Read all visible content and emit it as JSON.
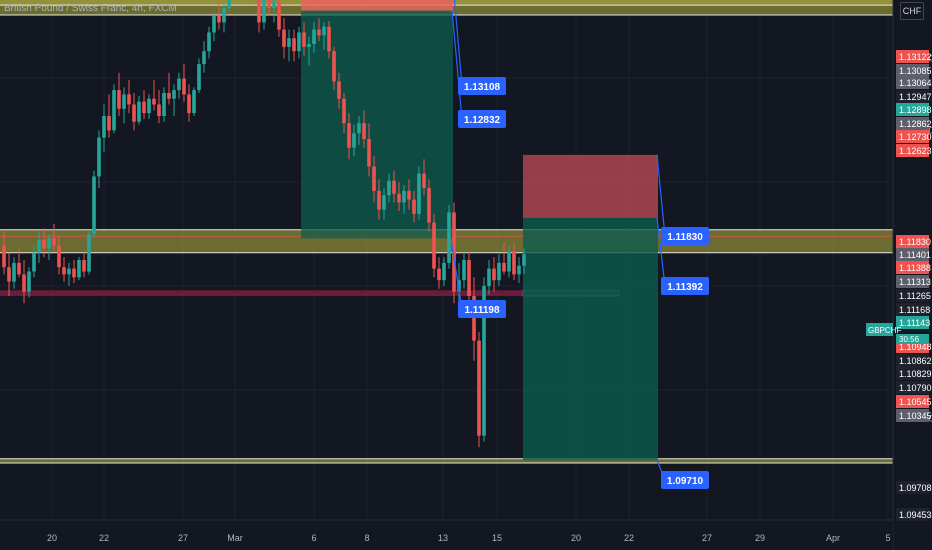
{
  "title": "British Pound / Swiss Franc, 4h, FXCM",
  "currency": "CHF",
  "symbol": "GBPCHF",
  "countdown": "30:56",
  "colors": {
    "background": "#131722",
    "up": "#26a69a",
    "down": "#ef5350",
    "zone": "#b5b040",
    "callout": "#2962ff",
    "target": "#0d5d4d",
    "stop": "#b84a55",
    "red_zone": "#7a1f3d"
  },
  "chart_data": {
    "type": "candlestick",
    "ylim": [
      1.0935,
      1.1285
    ],
    "x_ticks": [
      "20",
      "22",
      "27",
      "Mar",
      "6",
      "8",
      "13",
      "15",
      "20",
      "22",
      "27",
      "29",
      "Apr",
      "5"
    ],
    "y_ticks": [
      "1.12500",
      "1.12000",
      "1.10000"
    ],
    "price_labels": [
      {
        "value": "1.13122",
        "kind": "down"
      },
      {
        "value": "1.13085",
        "kind": "gray"
      },
      {
        "value": "1.13064",
        "kind": "gray"
      },
      {
        "value": "1.12947",
        "kind": "dark"
      },
      {
        "value": "1.12898",
        "kind": "up"
      },
      {
        "value": "1.12862",
        "kind": "gray"
      },
      {
        "value": "1.12730",
        "kind": "down"
      },
      {
        "value": "1.12623",
        "kind": "down"
      },
      {
        "value": "1.11830",
        "kind": "down"
      },
      {
        "value": "1.11401",
        "kind": "gray"
      },
      {
        "value": "1.11388",
        "kind": "down"
      },
      {
        "value": "1.11313",
        "kind": "gray"
      },
      {
        "value": "1.11265",
        "kind": "dark"
      },
      {
        "value": "1.11168",
        "kind": "dark"
      },
      {
        "value": "1.11143",
        "kind": "up"
      },
      {
        "value": "1.10948",
        "kind": "down"
      },
      {
        "value": "1.10862",
        "kind": "dark"
      },
      {
        "value": "1.10829",
        "kind": "dark"
      },
      {
        "value": "1.10790",
        "kind": "dark"
      },
      {
        "value": "1.10545",
        "kind": "down"
      },
      {
        "value": "1.10345",
        "kind": "gray"
      },
      {
        "value": "1.09708",
        "kind": "dark"
      },
      {
        "value": "1.09453",
        "kind": "dark"
      }
    ],
    "callouts": [
      "1.13108",
      "1.12832",
      "1.11198",
      "1.11830",
      "1.11392",
      "1.09710"
    ],
    "zones": [
      {
        "from": 1.1287,
        "to": 1.1313
      },
      {
        "from": 1.1115,
        "to": 1.1131
      },
      {
        "from": 1.0969,
        "to": 1.0972
      }
    ],
    "red_zone": {
      "from": 1.1085,
      "to": 1.1089
    },
    "positions": [
      {
        "side": "short",
        "entry": 1.12832,
        "stop": 1.13108,
        "target": 1.1125
      },
      {
        "side": "short",
        "entry": 1.11392,
        "stop": 1.1183,
        "target": 1.0971
      }
    ],
    "series": [
      {
        "o": 1.112,
        "h": 1.113,
        "l": 1.11,
        "c": 1.1105
      },
      {
        "o": 1.1105,
        "h": 1.1115,
        "l": 1.1085,
        "c": 1.1095
      },
      {
        "o": 1.1095,
        "h": 1.1112,
        "l": 1.109,
        "c": 1.1108
      },
      {
        "o": 1.1108,
        "h": 1.1118,
        "l": 1.1098,
        "c": 1.11
      },
      {
        "o": 1.11,
        "h": 1.111,
        "l": 1.108,
        "c": 1.1088
      },
      {
        "o": 1.1088,
        "h": 1.1105,
        "l": 1.1084,
        "c": 1.1102
      },
      {
        "o": 1.1102,
        "h": 1.112,
        "l": 1.1098,
        "c": 1.1115
      },
      {
        "o": 1.1115,
        "h": 1.113,
        "l": 1.1108,
        "c": 1.1124
      },
      {
        "o": 1.1124,
        "h": 1.1132,
        "l": 1.1112,
        "c": 1.1118
      },
      {
        "o": 1.1118,
        "h": 1.1128,
        "l": 1.111,
        "c": 1.1125
      },
      {
        "o": 1.1125,
        "h": 1.1135,
        "l": 1.1116,
        "c": 1.112
      },
      {
        "o": 1.112,
        "h": 1.1126,
        "l": 1.11,
        "c": 1.1105
      },
      {
        "o": 1.1105,
        "h": 1.1112,
        "l": 1.1095,
        "c": 1.11
      },
      {
        "o": 1.11,
        "h": 1.1108,
        "l": 1.1092,
        "c": 1.1104
      },
      {
        "o": 1.1104,
        "h": 1.111,
        "l": 1.1094,
        "c": 1.1098
      },
      {
        "o": 1.1098,
        "h": 1.1112,
        "l": 1.1096,
        "c": 1.111
      },
      {
        "o": 1.111,
        "h": 1.1116,
        "l": 1.1098,
        "c": 1.1102
      },
      {
        "o": 1.1102,
        "h": 1.113,
        "l": 1.11,
        "c": 1.1128
      },
      {
        "o": 1.1128,
        "h": 1.1172,
        "l": 1.1125,
        "c": 1.1168
      },
      {
        "o": 1.1168,
        "h": 1.12,
        "l": 1.116,
        "c": 1.1195
      },
      {
        "o": 1.1195,
        "h": 1.1218,
        "l": 1.1185,
        "c": 1.121
      },
      {
        "o": 1.121,
        "h": 1.1225,
        "l": 1.1195,
        "c": 1.12
      },
      {
        "o": 1.12,
        "h": 1.1232,
        "l": 1.1198,
        "c": 1.1228
      },
      {
        "o": 1.1228,
        "h": 1.124,
        "l": 1.121,
        "c": 1.1215
      },
      {
        "o": 1.1215,
        "h": 1.123,
        "l": 1.1205,
        "c": 1.1225
      },
      {
        "o": 1.1225,
        "h": 1.1235,
        "l": 1.1212,
        "c": 1.1218
      },
      {
        "o": 1.1218,
        "h": 1.1226,
        "l": 1.12,
        "c": 1.1206
      },
      {
        "o": 1.1206,
        "h": 1.1224,
        "l": 1.1204,
        "c": 1.122
      },
      {
        "o": 1.122,
        "h": 1.1228,
        "l": 1.1208,
        "c": 1.1212
      },
      {
        "o": 1.1212,
        "h": 1.1225,
        "l": 1.1208,
        "c": 1.1222
      },
      {
        "o": 1.1222,
        "h": 1.1235,
        "l": 1.1214,
        "c": 1.1218
      },
      {
        "o": 1.1218,
        "h": 1.1228,
        "l": 1.1205,
        "c": 1.121
      },
      {
        "o": 1.121,
        "h": 1.123,
        "l": 1.1206,
        "c": 1.1226
      },
      {
        "o": 1.1226,
        "h": 1.124,
        "l": 1.1218,
        "c": 1.1222
      },
      {
        "o": 1.1222,
        "h": 1.1232,
        "l": 1.121,
        "c": 1.1228
      },
      {
        "o": 1.1228,
        "h": 1.124,
        "l": 1.1222,
        "c": 1.1236
      },
      {
        "o": 1.1236,
        "h": 1.1246,
        "l": 1.122,
        "c": 1.1225
      },
      {
        "o": 1.1225,
        "h": 1.1232,
        "l": 1.1206,
        "c": 1.1212
      },
      {
        "o": 1.1212,
        "h": 1.123,
        "l": 1.121,
        "c": 1.1228
      },
      {
        "o": 1.1228,
        "h": 1.125,
        "l": 1.1226,
        "c": 1.1246
      },
      {
        "o": 1.1246,
        "h": 1.1262,
        "l": 1.124,
        "c": 1.1255
      },
      {
        "o": 1.1255,
        "h": 1.1272,
        "l": 1.125,
        "c": 1.1268
      },
      {
        "o": 1.1268,
        "h": 1.1282,
        "l": 1.1262,
        "c": 1.128
      },
      {
        "o": 1.128,
        "h": 1.129,
        "l": 1.127,
        "c": 1.1275
      },
      {
        "o": 1.1275,
        "h": 1.1288,
        "l": 1.1268,
        "c": 1.1285
      },
      {
        "o": 1.1285,
        "h": 1.131,
        "l": 1.1283,
        "c": 1.1305
      },
      {
        "o": 1.1305,
        "h": 1.1322,
        "l": 1.1298,
        "c": 1.1318
      },
      {
        "o": 1.1318,
        "h": 1.1334,
        "l": 1.13,
        "c": 1.1308
      },
      {
        "o": 1.1308,
        "h": 1.132,
        "l": 1.1295,
        "c": 1.13
      },
      {
        "o": 1.13,
        "h": 1.1328,
        "l": 1.1296,
        "c": 1.1312
      },
      {
        "o": 1.1312,
        "h": 1.1318,
        "l": 1.129,
        "c": 1.1296
      },
      {
        "o": 1.1296,
        "h": 1.13,
        "l": 1.1268,
        "c": 1.1275
      },
      {
        "o": 1.1275,
        "h": 1.13,
        "l": 1.127,
        "c": 1.1295
      },
      {
        "o": 1.1295,
        "h": 1.1305,
        "l": 1.128,
        "c": 1.1285
      },
      {
        "o": 1.1285,
        "h": 1.13,
        "l": 1.1275,
        "c": 1.129
      },
      {
        "o": 1.129,
        "h": 1.1296,
        "l": 1.1265,
        "c": 1.127
      },
      {
        "o": 1.127,
        "h": 1.1278,
        "l": 1.125,
        "c": 1.1258
      },
      {
        "o": 1.1258,
        "h": 1.127,
        "l": 1.1248,
        "c": 1.1264
      },
      {
        "o": 1.1264,
        "h": 1.127,
        "l": 1.1248,
        "c": 1.1255
      },
      {
        "o": 1.1255,
        "h": 1.1272,
        "l": 1.125,
        "c": 1.1268
      },
      {
        "o": 1.1268,
        "h": 1.1275,
        "l": 1.1252,
        "c": 1.1258
      },
      {
        "o": 1.1258,
        "h": 1.1265,
        "l": 1.1245,
        "c": 1.126
      },
      {
        "o": 1.126,
        "h": 1.1275,
        "l": 1.1254,
        "c": 1.127
      },
      {
        "o": 1.127,
        "h": 1.1278,
        "l": 1.1262,
        "c": 1.1266
      },
      {
        "o": 1.1266,
        "h": 1.1275,
        "l": 1.1256,
        "c": 1.1272
      },
      {
        "o": 1.1272,
        "h": 1.1276,
        "l": 1.125,
        "c": 1.1255
      },
      {
        "o": 1.1255,
        "h": 1.1258,
        "l": 1.1228,
        "c": 1.1234
      },
      {
        "o": 1.1234,
        "h": 1.124,
        "l": 1.1215,
        "c": 1.1222
      },
      {
        "o": 1.1222,
        "h": 1.1226,
        "l": 1.1198,
        "c": 1.1205
      },
      {
        "o": 1.1205,
        "h": 1.1212,
        "l": 1.118,
        "c": 1.1188
      },
      {
        "o": 1.1188,
        "h": 1.1204,
        "l": 1.1182,
        "c": 1.1198
      },
      {
        "o": 1.1198,
        "h": 1.121,
        "l": 1.119,
        "c": 1.1205
      },
      {
        "o": 1.1205,
        "h": 1.1214,
        "l": 1.1188,
        "c": 1.1194
      },
      {
        "o": 1.1194,
        "h": 1.1205,
        "l": 1.1168,
        "c": 1.1175
      },
      {
        "o": 1.1175,
        "h": 1.1182,
        "l": 1.115,
        "c": 1.1158
      },
      {
        "o": 1.1158,
        "h": 1.1166,
        "l": 1.1138,
        "c": 1.1145
      },
      {
        "o": 1.1145,
        "h": 1.116,
        "l": 1.1138,
        "c": 1.1155
      },
      {
        "o": 1.1155,
        "h": 1.117,
        "l": 1.115,
        "c": 1.1165
      },
      {
        "o": 1.1165,
        "h": 1.1172,
        "l": 1.115,
        "c": 1.1156
      },
      {
        "o": 1.1156,
        "h": 1.1164,
        "l": 1.1144,
        "c": 1.115
      },
      {
        "o": 1.115,
        "h": 1.1162,
        "l": 1.1142,
        "c": 1.1158
      },
      {
        "o": 1.1158,
        "h": 1.1166,
        "l": 1.1145,
        "c": 1.1152
      },
      {
        "o": 1.1152,
        "h": 1.1158,
        "l": 1.1136,
        "c": 1.1142
      },
      {
        "o": 1.1142,
        "h": 1.1175,
        "l": 1.1138,
        "c": 1.117
      },
      {
        "o": 1.117,
        "h": 1.118,
        "l": 1.1155,
        "c": 1.116
      },
      {
        "o": 1.116,
        "h": 1.1166,
        "l": 1.113,
        "c": 1.1136
      },
      {
        "o": 1.1136,
        "h": 1.1142,
        "l": 1.1098,
        "c": 1.1104
      },
      {
        "o": 1.1104,
        "h": 1.1112,
        "l": 1.109,
        "c": 1.1096
      },
      {
        "o": 1.1096,
        "h": 1.1112,
        "l": 1.1092,
        "c": 1.1108
      },
      {
        "o": 1.1108,
        "h": 1.1148,
        "l": 1.1104,
        "c": 1.1143
      },
      {
        "o": 1.1143,
        "h": 1.115,
        "l": 1.108,
        "c": 1.1088
      },
      {
        "o": 1.1088,
        "h": 1.1108,
        "l": 1.1078,
        "c": 1.1096
      },
      {
        "o": 1.1096,
        "h": 1.1116,
        "l": 1.109,
        "c": 1.111
      },
      {
        "o": 1.111,
        "h": 1.1116,
        "l": 1.1078,
        "c": 1.1085
      },
      {
        "o": 1.1085,
        "h": 1.1098,
        "l": 1.104,
        "c": 1.1054
      },
      {
        "o": 1.1054,
        "h": 1.106,
        "l": 1.098,
        "c": 1.0988
      },
      {
        "o": 1.0988,
        "h": 1.1098,
        "l": 1.0984,
        "c": 1.1092
      },
      {
        "o": 1.1092,
        "h": 1.111,
        "l": 1.1086,
        "c": 1.1104
      },
      {
        "o": 1.1104,
        "h": 1.1112,
        "l": 1.1088,
        "c": 1.1096
      },
      {
        "o": 1.1096,
        "h": 1.1114,
        "l": 1.1092,
        "c": 1.1108
      },
      {
        "o": 1.1108,
        "h": 1.1122,
        "l": 1.11,
        "c": 1.1102
      },
      {
        "o": 1.1102,
        "h": 1.112,
        "l": 1.1098,
        "c": 1.1116
      },
      {
        "o": 1.1116,
        "h": 1.1122,
        "l": 1.1096,
        "c": 1.11
      },
      {
        "o": 1.11,
        "h": 1.1112,
        "l": 1.1094,
        "c": 1.1106
      },
      {
        "o": 1.1106,
        "h": 1.1118,
        "l": 1.11,
        "c": 1.1114
      }
    ]
  }
}
